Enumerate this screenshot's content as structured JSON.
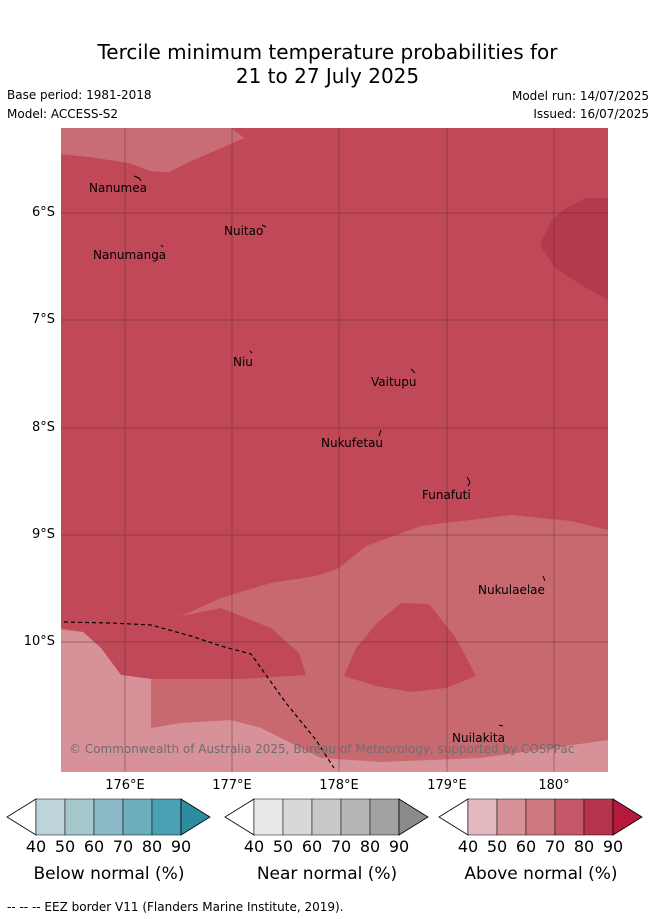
{
  "title": {
    "line1": "Tercile minimum temperature probabilities for",
    "line2": "21 to 27 July 2025"
  },
  "meta": {
    "base_period": "Base period: 1981-2018",
    "model": "Model: ACCESS-S2",
    "model_run": "Model run: 14/07/2025",
    "issued": "Issued: 16/07/2025"
  },
  "map": {
    "lat_labels": [
      "6°S",
      "7°S",
      "8°S",
      "9°S",
      "10°S"
    ],
    "lon_labels": [
      "176°E",
      "177°E",
      "178°E",
      "179°E",
      "180°"
    ],
    "places": [
      "Nanumea",
      "Nuitao",
      "Nanumanga",
      "Niu",
      "Vaitupu",
      "Nukufetau",
      "Funafuti",
      "Nukulaelae",
      "Nuilakita"
    ],
    "copyright": "© Commonwealth of Australia 2025, Bureau of Meteorology, supported by COSPPac",
    "colors": {
      "light": "#d79198",
      "mid": "#c86970",
      "main": "#c14957",
      "dark": "#b33a4d"
    }
  },
  "colorbars": [
    {
      "label": "Below normal (%)",
      "ticks": [
        "40",
        "50",
        "60",
        "70",
        "80",
        "90"
      ],
      "colors": [
        "#ffffff",
        "#bed3da",
        "#a5c7cc",
        "#8bb8c5",
        "#6caebd",
        "#4aa1b3",
        "#2c8ca2"
      ]
    },
    {
      "label": "Near normal (%)",
      "ticks": [
        "40",
        "50",
        "60",
        "70",
        "80",
        "90"
      ],
      "colors": [
        "#ffffff",
        "#e8e8e8",
        "#d8d8d8",
        "#c8c8c8",
        "#b6b6b6",
        "#a1a1a1",
        "#8a8a8a"
      ]
    },
    {
      "label": "Above normal (%)",
      "ticks": [
        "40",
        "50",
        "60",
        "70",
        "80",
        "90"
      ],
      "colors": [
        "#ffffff",
        "#e3b8bf",
        "#d79198",
        "#ce7880",
        "#c45869",
        "#b5344b",
        "#b51a3c"
      ]
    }
  ],
  "footer": "-- -- -- EEZ border V11 (Flanders Marine Institute, 2019)."
}
